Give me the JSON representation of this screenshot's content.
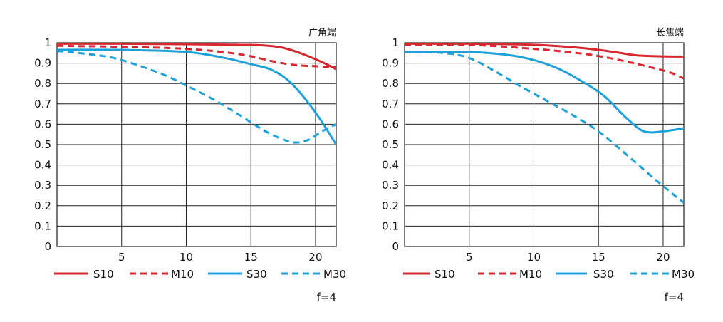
{
  "chart_data": [
    {
      "type": "line",
      "title": "广角端",
      "xlabel": "",
      "ylabel": "",
      "xlim": [
        0,
        21.6
      ],
      "ylim": [
        0,
        1
      ],
      "x_ticks": [
        "5",
        "10",
        "15",
        "20"
      ],
      "y_ticks": [
        "0",
        "0.1",
        "0.2",
        "0.3",
        "0.4",
        "0.5",
        "0.6",
        "0.7",
        "0.8",
        "0.9",
        "1"
      ],
      "grid": true,
      "legend_position": "bottom",
      "note": "f=4",
      "series": [
        {
          "name": "S10",
          "color": "#d7282f",
          "dash": "solid",
          "points": [
            [
              0,
              0.995
            ],
            [
              5,
              0.995
            ],
            [
              10,
              0.993
            ],
            [
              14,
              0.99
            ],
            [
              16,
              0.987
            ],
            [
              17.5,
              0.975
            ],
            [
              19,
              0.945
            ],
            [
              20.5,
              0.905
            ],
            [
              21.6,
              0.87
            ]
          ]
        },
        {
          "name": "M10",
          "color": "#d7282f",
          "dash": "dashed",
          "points": [
            [
              0,
              0.985
            ],
            [
              5,
              0.98
            ],
            [
              10,
              0.97
            ],
            [
              14,
              0.945
            ],
            [
              17,
              0.905
            ],
            [
              18.5,
              0.89
            ],
            [
              20,
              0.885
            ],
            [
              21.6,
              0.88
            ]
          ]
        },
        {
          "name": "S30",
          "color": "#1ea1d8",
          "dash": "solid",
          "points": [
            [
              0,
              0.965
            ],
            [
              5,
              0.965
            ],
            [
              10,
              0.955
            ],
            [
              13,
              0.925
            ],
            [
              15,
              0.895
            ],
            [
              16.5,
              0.87
            ],
            [
              17.8,
              0.82
            ],
            [
              19,
              0.74
            ],
            [
              20.3,
              0.63
            ],
            [
              21.6,
              0.5
            ]
          ]
        },
        {
          "name": "M30",
          "color": "#1ea1d8",
          "dash": "dashed",
          "points": [
            [
              0,
              0.96
            ],
            [
              3,
              0.94
            ],
            [
              5,
              0.915
            ],
            [
              8,
              0.85
            ],
            [
              10,
              0.79
            ],
            [
              12,
              0.725
            ],
            [
              14,
              0.65
            ],
            [
              16,
              0.57
            ],
            [
              17.5,
              0.525
            ],
            [
              18.5,
              0.51
            ],
            [
              19.5,
              0.525
            ],
            [
              20.5,
              0.565
            ],
            [
              21.6,
              0.6
            ]
          ]
        }
      ]
    },
    {
      "type": "line",
      "title": "长焦端",
      "xlabel": "",
      "ylabel": "",
      "xlim": [
        0,
        21.6
      ],
      "ylim": [
        0,
        1
      ],
      "x_ticks": [
        "5",
        "10",
        "15",
        "20"
      ],
      "y_ticks": [
        "0",
        "0.1",
        "0.2",
        "0.3",
        "0.4",
        "0.5",
        "0.6",
        "0.7",
        "0.8",
        "0.9",
        "1"
      ],
      "grid": true,
      "legend_position": "bottom",
      "note": "f=4",
      "series": [
        {
          "name": "S10",
          "color": "#d7282f",
          "dash": "solid",
          "points": [
            [
              0,
              0.995
            ],
            [
              5,
              0.995
            ],
            [
              10,
              0.99
            ],
            [
              13,
              0.978
            ],
            [
              15,
              0.965
            ],
            [
              16.5,
              0.952
            ],
            [
              18,
              0.938
            ],
            [
              20,
              0.933
            ],
            [
              21.6,
              0.932
            ]
          ]
        },
        {
          "name": "M10",
          "color": "#d7282f",
          "dash": "dashed",
          "points": [
            [
              0,
              0.99
            ],
            [
              5,
              0.99
            ],
            [
              10,
              0.97
            ],
            [
              13,
              0.952
            ],
            [
              15,
              0.935
            ],
            [
              17,
              0.91
            ],
            [
              19,
              0.88
            ],
            [
              20.5,
              0.855
            ],
            [
              21.6,
              0.825
            ]
          ]
        },
        {
          "name": "S30",
          "color": "#1ea1d8",
          "dash": "solid",
          "points": [
            [
              0,
              0.955
            ],
            [
              5,
              0.955
            ],
            [
              8,
              0.94
            ],
            [
              10,
              0.915
            ],
            [
              12,
              0.87
            ],
            [
              14,
              0.8
            ],
            [
              15.5,
              0.735
            ],
            [
              17,
              0.64
            ],
            [
              18.2,
              0.575
            ],
            [
              19,
              0.56
            ],
            [
              20,
              0.565
            ],
            [
              21.6,
              0.58
            ]
          ]
        },
        {
          "name": "M30",
          "color": "#1ea1d8",
          "dash": "dashed",
          "points": [
            [
              0,
              0.955
            ],
            [
              3,
              0.95
            ],
            [
              5,
              0.925
            ],
            [
              7,
              0.86
            ],
            [
              9,
              0.785
            ],
            [
              11,
              0.715
            ],
            [
              13,
              0.645
            ],
            [
              15,
              0.565
            ],
            [
              17,
              0.46
            ],
            [
              19,
              0.35
            ],
            [
              20.5,
              0.27
            ],
            [
              21.6,
              0.215
            ]
          ]
        }
      ]
    }
  ]
}
